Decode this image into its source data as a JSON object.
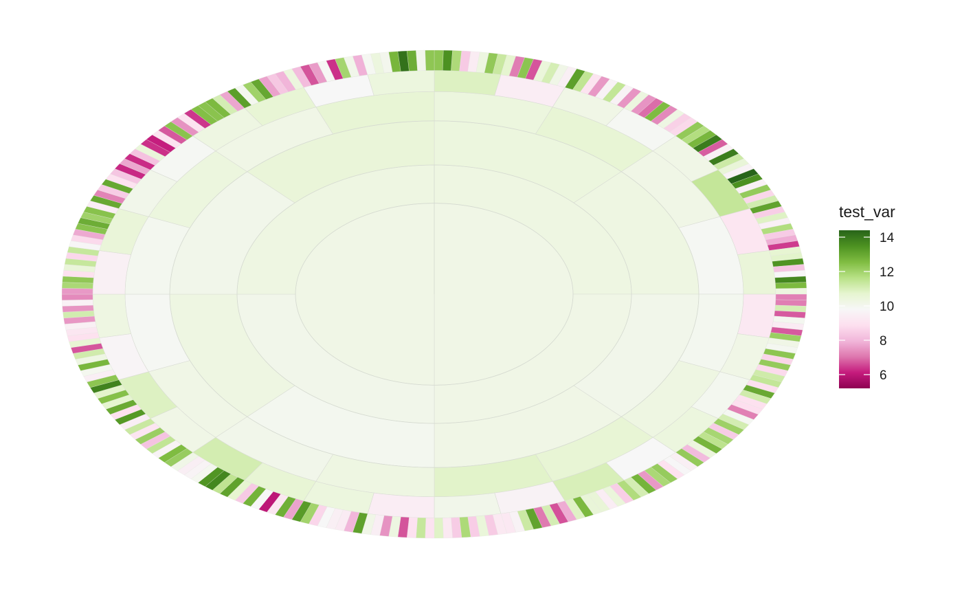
{
  "chart_data": {
    "type": "sunburst",
    "title": "",
    "xlabel": "",
    "ylabel": "",
    "grid": true,
    "legend": {
      "title": "test_var",
      "placement": "right",
      "range": [
        5.2,
        14.4
      ],
      "ticks": [
        6,
        8,
        10,
        12,
        14
      ],
      "tick_labels": [
        "6",
        "8",
        "10",
        "12",
        "14"
      ],
      "gradient": [
        "#8e0152",
        "#c51b7d",
        "#de77ae",
        "#f1b6da",
        "#fde0ef",
        "#f7f7f7",
        "#e6f5d0",
        "#b8e186",
        "#7fbc41",
        "#4d9221",
        "#276419"
      ]
    },
    "rings": [
      {
        "level": 1,
        "values": [
          10.2,
          10.2
        ]
      },
      {
        "level": 2,
        "values": [
          10.3,
          10.2,
          10.1,
          10.3
        ]
      },
      {
        "level": 3,
        "values": [
          10.4,
          10.3,
          10.1,
          10.2,
          10.0,
          10.3,
          10.1,
          10.5
        ]
      },
      {
        "level": 4,
        "values": [
          10.4,
          10.6,
          10.2,
          9.9,
          10.0,
          10.3,
          10.6,
          10.8,
          10.3,
          10.1,
          10.2,
          9.9,
          10.0,
          10.4,
          10.2,
          10.6
        ]
      },
      {
        "level": 5,
        "values": [
          10.9,
          9.4,
          10.2,
          9.9,
          10.2,
          11.4,
          9.1,
          10.5,
          9.2,
          10.2,
          10.0,
          10.4,
          9.8,
          11.0,
          9.6,
          10.1,
          9.4,
          10.4,
          10.6,
          11.1,
          10.2,
          10.9,
          9.7,
          10.3,
          9.5,
          10.5,
          10.1,
          9.9,
          10.3,
          10.6,
          9.8,
          10.4
        ]
      }
    ]
  }
}
